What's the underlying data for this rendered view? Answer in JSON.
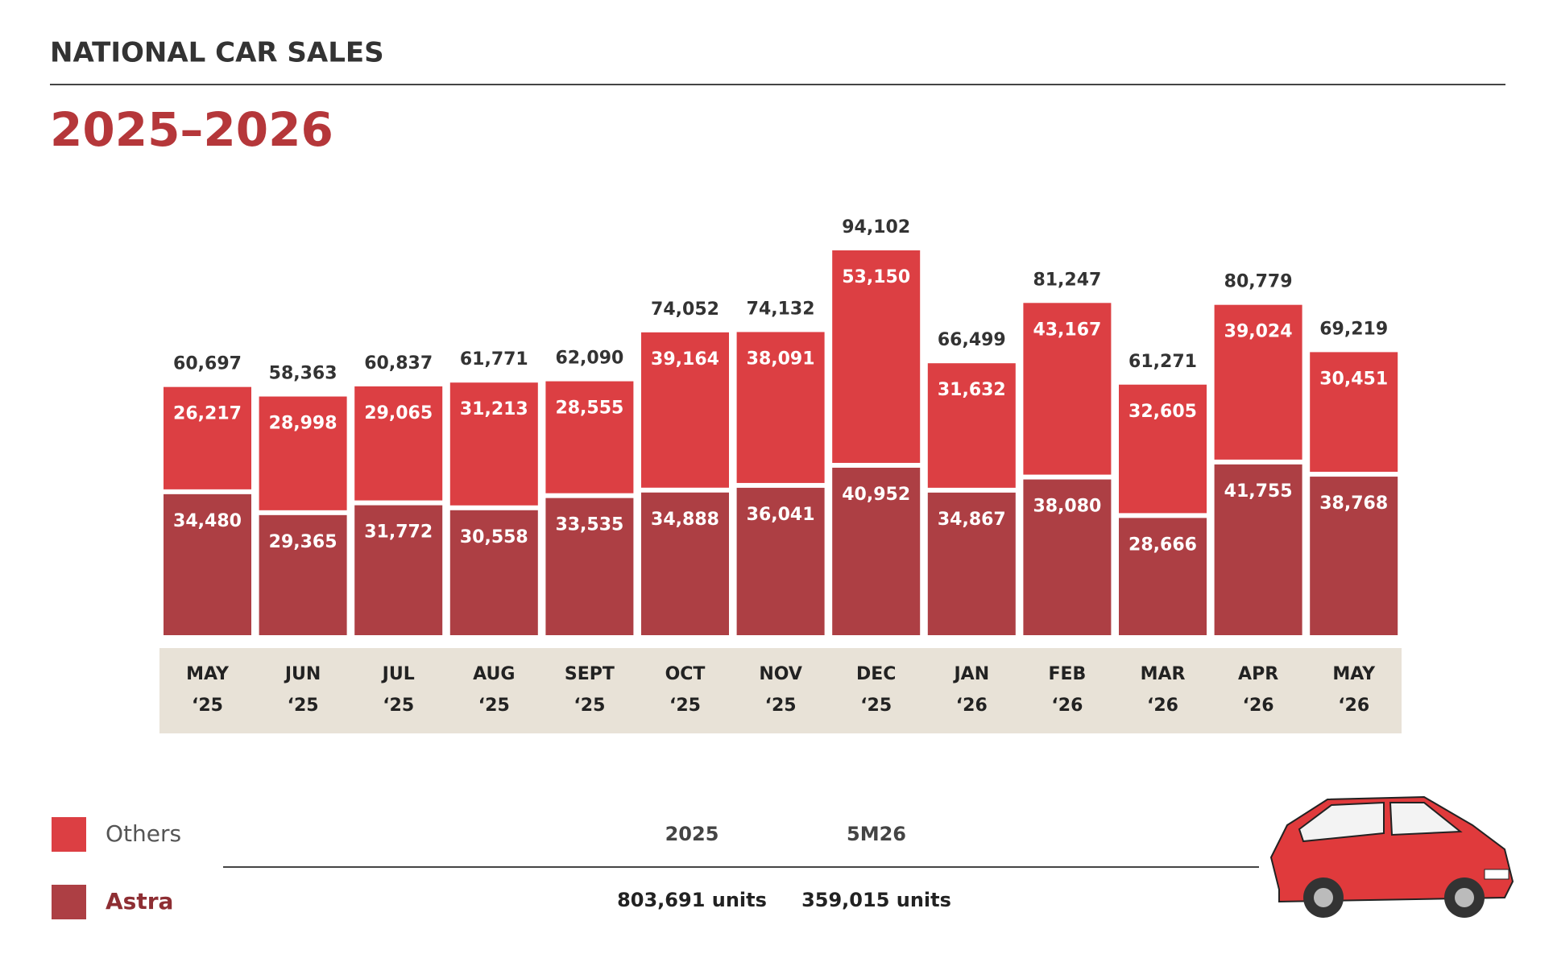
{
  "chart_data": {
    "type": "stacked-bar",
    "header": "NATIONAL CAR SALES",
    "title": "2025–2026",
    "categories": [
      [
        "MAY",
        "‘25"
      ],
      [
        "JUN",
        "‘25"
      ],
      [
        "JUL",
        "‘25"
      ],
      [
        "AUG",
        "‘25"
      ],
      [
        "SEPT",
        "‘25"
      ],
      [
        "OCT",
        "‘25"
      ],
      [
        "NOV",
        "‘25"
      ],
      [
        "DEC",
        "‘25"
      ],
      [
        "JAN",
        "‘26"
      ],
      [
        "FEB",
        "‘26"
      ],
      [
        "MAR",
        "‘26"
      ],
      [
        "APR",
        "‘26"
      ],
      [
        "MAY",
        "‘26"
      ]
    ],
    "series": [
      {
        "name": "Astra",
        "color": "#ad3f44",
        "values": [
          34480,
          29365,
          31772,
          30558,
          33535,
          34888,
          36041,
          40952,
          34867,
          38080,
          28666,
          41755,
          38768
        ],
        "value_labels": [
          "34,480",
          "29,365",
          "31,772",
          "30,558",
          "33,535",
          "34,888",
          "36,041",
          "40,952",
          "34,867",
          "38,080",
          "28,666",
          "41,755",
          "38,768"
        ]
      },
      {
        "name": "Others",
        "color": "#dc3f43",
        "values": [
          26217,
          28998,
          29065,
          31213,
          28555,
          39164,
          38091,
          53150,
          31632,
          43167,
          32605,
          39024,
          30451
        ],
        "value_labels": [
          "26,217",
          "28,998",
          "29,065",
          "31,213",
          "28,555",
          "39,164",
          "38,091",
          "53,150",
          "31,632",
          "43,167",
          "32,605",
          "39,024",
          "30,451"
        ]
      }
    ],
    "totals": {
      "values": [
        60697,
        58363,
        60837,
        61771,
        62090,
        74052,
        74132,
        94102,
        66499,
        81247,
        61271,
        80779,
        69219
      ],
      "value_labels": [
        "60,697",
        "58,363",
        "60,837",
        "61,771",
        "62,090",
        "74,052",
        "74,132",
        "94,102",
        "66,499",
        "81,247",
        "61,271",
        "80,779",
        "69,219"
      ]
    },
    "summary": {
      "columns": [
        "2025",
        "5M26"
      ],
      "values": [
        803691,
        359015
      ],
      "value_labels": [
        "803,691 units",
        "359,015 units"
      ]
    }
  }
}
